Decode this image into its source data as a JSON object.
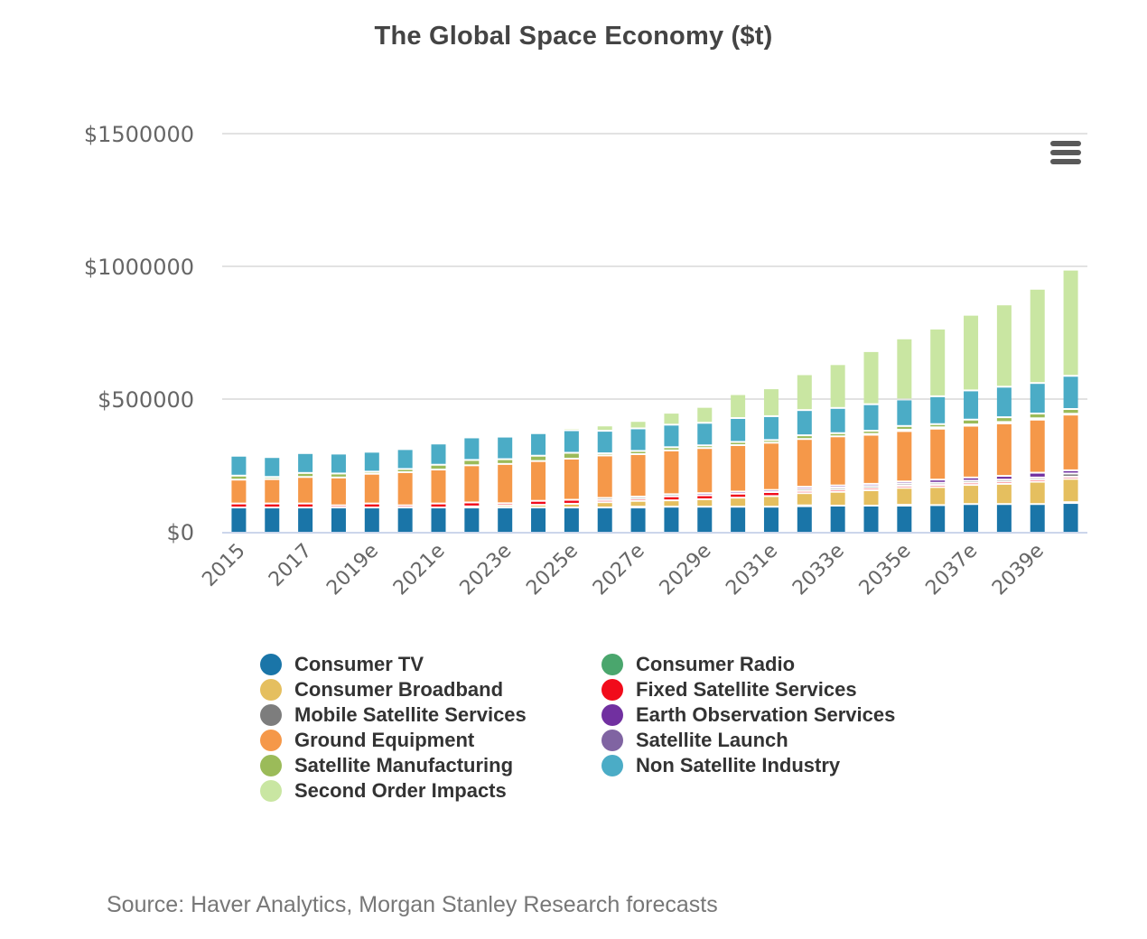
{
  "header": {
    "title": "The Global Space Economy ($t)"
  },
  "menu": {
    "icon": "hamburger-menu-icon"
  },
  "source": "Source: Haver Analytics, Morgan Stanley Research forecasts",
  "chart_data": {
    "type": "bar",
    "stacked": true,
    "title": "The Global Space Economy ($t)",
    "xlabel": "",
    "ylabel": "",
    "ylim": [
      0,
      1500000
    ],
    "yticks": [
      0,
      500000,
      1000000,
      1500000
    ],
    "ytick_labels": [
      "$0",
      "$500000",
      "$1000000",
      "$1500000"
    ],
    "grid": true,
    "legend_position": "bottom",
    "categories": [
      "2015",
      "2016",
      "2017",
      "2018",
      "2019e",
      "2020e",
      "2021e",
      "2022e",
      "2023e",
      "2024e",
      "2025e",
      "2026e",
      "2027e",
      "2028e",
      "2029e",
      "2030e",
      "2031e",
      "2032e",
      "2033e",
      "2034e",
      "2035e",
      "2036e",
      "2037e",
      "2038e",
      "2039e",
      "2040e"
    ],
    "xtick_labels_shown": [
      "2015",
      "2017",
      "2019e",
      "2021e",
      "2023e",
      "2025e",
      "2027e",
      "2029e",
      "2031e",
      "2033e",
      "2035e",
      "2037e",
      "2039e"
    ],
    "series": [
      {
        "name": "Consumer TV",
        "color": "#1a75a8",
        "values": [
          95000,
          95000,
          95000,
          95000,
          95000,
          95000,
          95000,
          95000,
          95000,
          95000,
          95000,
          95000,
          95000,
          98000,
          98000,
          98000,
          98000,
          100000,
          102000,
          102000,
          102000,
          104000,
          108000,
          108000,
          108000,
          112000
        ]
      },
      {
        "name": "Consumer Radio",
        "color": "#4aa66d",
        "values": [
          0,
          0,
          0,
          0,
          0,
          0,
          0,
          0,
          0,
          0,
          0,
          0,
          3000,
          0,
          0,
          0,
          0,
          3000,
          0,
          0,
          3000,
          0,
          0,
          0,
          0,
          3000
        ]
      },
      {
        "name": "Consumer Broadband",
        "color": "#e5bf5f",
        "values": [
          0,
          0,
          0,
          0,
          0,
          0,
          0,
          4000,
          8000,
          10000,
          14000,
          20000,
          22000,
          24000,
          28000,
          34000,
          40000,
          46000,
          52000,
          58000,
          64000,
          68000,
          72000,
          76000,
          84000,
          88000
        ]
      },
      {
        "name": "Fixed Satellite Services",
        "color": "#f10b1b",
        "values": [
          15000,
          15000,
          15000,
          8000,
          15000,
          8000,
          15000,
          15000,
          8000,
          15000,
          15000,
          8000,
          8000,
          15000,
          15000,
          15000,
          15000,
          8000,
          8000,
          8000,
          8000,
          8000,
          8000,
          8000,
          8000,
          8000
        ]
      },
      {
        "name": "Mobile Satellite Services",
        "color": "#7d7d7d",
        "values": [
          0,
          0,
          0,
          0,
          0,
          0,
          0,
          0,
          0,
          0,
          0,
          8000,
          8000,
          8000,
          0,
          0,
          0,
          8000,
          8000,
          8000,
          8000,
          8000,
          8000,
          8000,
          8000,
          12000
        ]
      },
      {
        "name": "Earth Observation Services",
        "color": "#7130a0",
        "values": [
          0,
          0,
          0,
          0,
          0,
          0,
          0,
          0,
          0,
          0,
          0,
          0,
          0,
          0,
          8000,
          8000,
          8000,
          8000,
          8000,
          8000,
          8000,
          12000,
          12000,
          14000,
          18000,
          12000
        ]
      },
      {
        "name": "Ground Equipment",
        "color": "#f59849",
        "values": [
          90000,
          92000,
          100000,
          105000,
          112000,
          125000,
          128000,
          140000,
          148000,
          150000,
          155000,
          160000,
          160000,
          165000,
          170000,
          175000,
          178000,
          180000,
          185000,
          185000,
          190000,
          192000,
          195000,
          198000,
          200000,
          210000
        ]
      },
      {
        "name": "Satellite Launch",
        "color": "#8064a2",
        "values": [
          0,
          0,
          0,
          0,
          0,
          0,
          0,
          0,
          0,
          0,
          0,
          0,
          0,
          0,
          0,
          0,
          0,
          0,
          0,
          3000,
          5000,
          5000,
          5000,
          5000,
          5000,
          3000
        ]
      },
      {
        "name": "Satellite Manufacturing",
        "color": "#9bbb59",
        "values": [
          15000,
          8000,
          15000,
          15000,
          8000,
          12000,
          18000,
          20000,
          18000,
          20000,
          22000,
          8000,
          12000,
          12000,
          10000,
          12000,
          10000,
          14000,
          12000,
          12000,
          14000,
          12000,
          18000,
          18000,
          18000,
          18000
        ]
      },
      {
        "name": "Non Satellite Industry",
        "color": "#4bacc6",
        "values": [
          75000,
          75000,
          75000,
          75000,
          75000,
          75000,
          80000,
          85000,
          85000,
          85000,
          85000,
          85000,
          85000,
          85000,
          85000,
          90000,
          90000,
          95000,
          95000,
          100000,
          100000,
          105000,
          110000,
          115000,
          115000,
          125000
        ]
      },
      {
        "name": "Second Order Impacts",
        "color": "#c9e6a2",
        "values": [
          0,
          0,
          0,
          0,
          0,
          0,
          0,
          0,
          0,
          0,
          8000,
          20000,
          28000,
          45000,
          60000,
          90000,
          105000,
          135000,
          165000,
          200000,
          230000,
          255000,
          285000,
          310000,
          355000,
          400000
        ]
      }
    ]
  }
}
